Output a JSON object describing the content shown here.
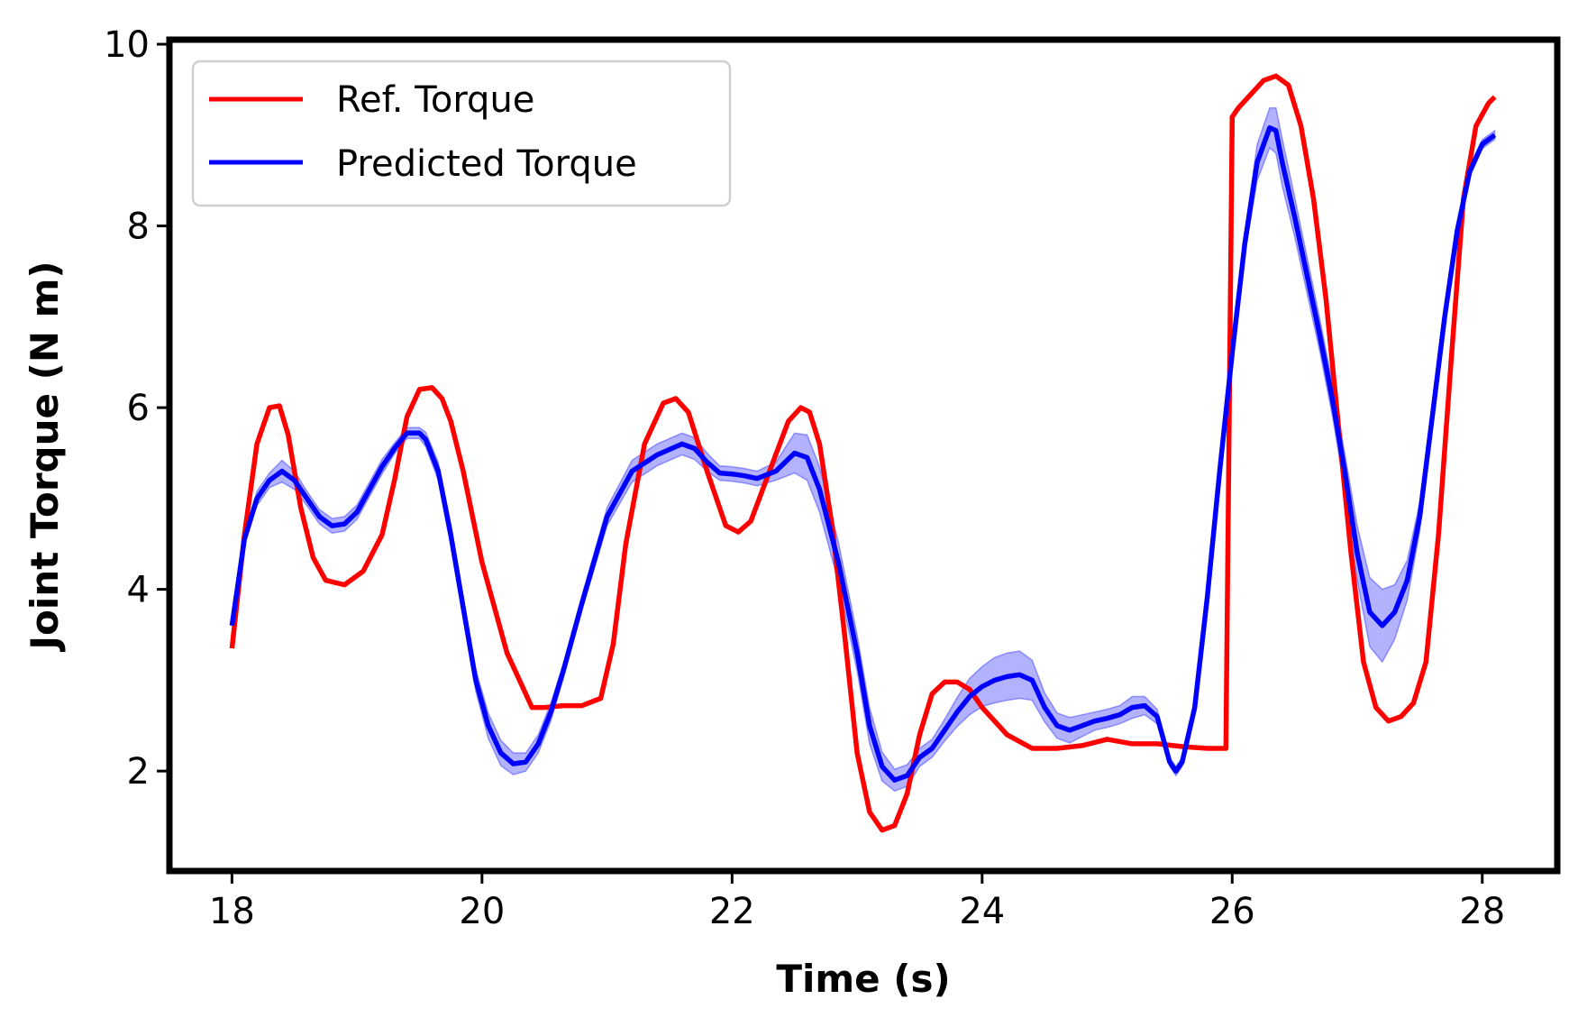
{
  "chart_data": {
    "type": "line",
    "title": "",
    "xlabel": "Time (s)",
    "ylabel": "Joint Torque (N m)",
    "xlim": [
      17.5,
      28.6
    ],
    "ylim": [
      0.9,
      10.05
    ],
    "xticks": [
      18,
      20,
      22,
      24,
      26,
      28
    ],
    "yticks": [
      2,
      4,
      6,
      8,
      10
    ],
    "grid": false,
    "legend_position": "top-left",
    "series": [
      {
        "name": "Ref. Torque",
        "color": "#ff0000",
        "x": [
          18.0,
          18.1,
          18.2,
          18.3,
          18.38,
          18.45,
          18.55,
          18.65,
          18.75,
          18.9,
          19.05,
          19.2,
          19.3,
          19.4,
          19.5,
          19.6,
          19.68,
          19.75,
          19.85,
          20.0,
          20.2,
          20.4,
          20.5,
          20.65,
          20.8,
          20.95,
          21.05,
          21.15,
          21.3,
          21.45,
          21.55,
          21.65,
          21.8,
          21.95,
          22.05,
          22.15,
          22.3,
          22.45,
          22.55,
          22.62,
          22.7,
          22.8,
          22.9,
          23.0,
          23.1,
          23.2,
          23.3,
          23.4,
          23.5,
          23.6,
          23.7,
          23.8,
          23.9,
          24.0,
          24.2,
          24.4,
          24.6,
          24.8,
          25.0,
          25.2,
          25.4,
          25.6,
          25.8,
          25.95,
          26.0,
          26.05,
          26.15,
          26.25,
          26.35,
          26.45,
          26.55,
          26.65,
          26.75,
          26.85,
          26.95,
          27.05,
          27.15,
          27.25,
          27.35,
          27.45,
          27.55,
          27.65,
          27.75,
          27.85,
          27.95,
          28.05,
          28.1
        ],
        "values": [
          3.35,
          4.6,
          5.6,
          6.0,
          6.02,
          5.7,
          4.9,
          4.35,
          4.1,
          4.05,
          4.2,
          4.6,
          5.2,
          5.9,
          6.2,
          6.22,
          6.1,
          5.85,
          5.3,
          4.3,
          3.3,
          2.7,
          2.7,
          2.72,
          2.72,
          2.8,
          3.4,
          4.5,
          5.6,
          6.05,
          6.1,
          5.95,
          5.3,
          4.7,
          4.63,
          4.75,
          5.3,
          5.85,
          6.0,
          5.95,
          5.6,
          4.7,
          3.5,
          2.2,
          1.55,
          1.35,
          1.4,
          1.75,
          2.4,
          2.85,
          2.98,
          2.98,
          2.9,
          2.7,
          2.4,
          2.25,
          2.25,
          2.28,
          2.35,
          2.3,
          2.3,
          2.27,
          2.25,
          2.25,
          9.2,
          9.3,
          9.45,
          9.6,
          9.65,
          9.55,
          9.1,
          8.3,
          7.2,
          5.8,
          4.4,
          3.2,
          2.7,
          2.55,
          2.6,
          2.75,
          3.2,
          4.6,
          6.5,
          8.3,
          9.1,
          9.35,
          9.42
        ]
      },
      {
        "name": "Predicted Torque",
        "color": "#0000ff",
        "x": [
          18.0,
          18.1,
          18.2,
          18.3,
          18.4,
          18.5,
          18.6,
          18.7,
          18.8,
          18.9,
          19.0,
          19.1,
          19.2,
          19.3,
          19.4,
          19.5,
          19.55,
          19.65,
          19.75,
          19.85,
          19.95,
          20.05,
          20.15,
          20.25,
          20.35,
          20.45,
          20.55,
          20.65,
          20.8,
          21.0,
          21.2,
          21.4,
          21.6,
          21.7,
          21.8,
          21.9,
          22.0,
          22.1,
          22.2,
          22.35,
          22.5,
          22.6,
          22.7,
          22.85,
          23.0,
          23.1,
          23.2,
          23.3,
          23.4,
          23.5,
          23.6,
          23.7,
          23.8,
          23.9,
          24.0,
          24.1,
          24.2,
          24.3,
          24.4,
          24.5,
          24.6,
          24.7,
          24.8,
          24.9,
          25.0,
          25.1,
          25.2,
          25.3,
          25.4,
          25.5,
          25.55,
          25.6,
          25.7,
          25.8,
          25.9,
          26.0,
          26.1,
          26.2,
          26.3,
          26.35,
          26.4,
          26.5,
          26.6,
          26.7,
          26.8,
          26.9,
          27.0,
          27.1,
          27.2,
          27.3,
          27.4,
          27.5,
          27.6,
          27.7,
          27.8,
          27.9,
          28.0,
          28.1
        ],
        "values": [
          3.6,
          4.55,
          5.0,
          5.2,
          5.3,
          5.2,
          5.0,
          4.8,
          4.7,
          4.72,
          4.85,
          5.1,
          5.35,
          5.55,
          5.72,
          5.72,
          5.65,
          5.3,
          4.6,
          3.8,
          3.0,
          2.5,
          2.2,
          2.08,
          2.1,
          2.3,
          2.65,
          3.1,
          3.85,
          4.8,
          5.3,
          5.48,
          5.6,
          5.55,
          5.4,
          5.28,
          5.27,
          5.25,
          5.22,
          5.3,
          5.5,
          5.45,
          5.1,
          4.3,
          3.3,
          2.5,
          2.05,
          1.9,
          1.95,
          2.15,
          2.25,
          2.45,
          2.65,
          2.82,
          2.93,
          3.0,
          3.04,
          3.06,
          3.0,
          2.7,
          2.5,
          2.45,
          2.5,
          2.55,
          2.58,
          2.62,
          2.7,
          2.72,
          2.6,
          2.1,
          2.0,
          2.1,
          2.7,
          3.9,
          5.3,
          6.6,
          7.8,
          8.7,
          9.08,
          9.05,
          8.7,
          8.1,
          7.45,
          6.8,
          6.1,
          5.3,
          4.4,
          3.75,
          3.6,
          3.75,
          4.1,
          4.8,
          5.9,
          7.0,
          7.95,
          8.6,
          8.9,
          9.0
        ]
      }
    ],
    "band_width": [
      0.0,
      0.05,
      0.08,
      0.08,
      0.12,
      0.1,
      0.08,
      0.08,
      0.08,
      0.08,
      0.08,
      0.08,
      0.08,
      0.06,
      0.06,
      0.06,
      0.08,
      0.1,
      0.12,
      0.12,
      0.12,
      0.14,
      0.14,
      0.12,
      0.1,
      0.1,
      0.1,
      0.08,
      0.08,
      0.1,
      0.12,
      0.12,
      0.12,
      0.12,
      0.1,
      0.08,
      0.08,
      0.08,
      0.08,
      0.1,
      0.22,
      0.25,
      0.25,
      0.22,
      0.2,
      0.2,
      0.16,
      0.12,
      0.12,
      0.1,
      0.1,
      0.12,
      0.16,
      0.2,
      0.22,
      0.25,
      0.26,
      0.26,
      0.22,
      0.16,
      0.14,
      0.14,
      0.12,
      0.1,
      0.1,
      0.1,
      0.12,
      0.1,
      0.08,
      0.05,
      0.05,
      0.05,
      0.05,
      0.05,
      0.05,
      0.08,
      0.12,
      0.2,
      0.22,
      0.25,
      0.26,
      0.22,
      0.2,
      0.18,
      0.18,
      0.2,
      0.3,
      0.38,
      0.4,
      0.3,
      0.22,
      0.16,
      0.12,
      0.1,
      0.08,
      0.06,
      0.05,
      0.05
    ],
    "band_color": "#0000ff",
    "band_opacity": 0.3
  }
}
